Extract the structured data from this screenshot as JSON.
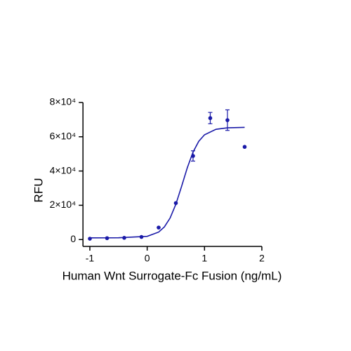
{
  "chart_data": {
    "type": "scatter",
    "xlabel": "Human Wnt Surrogate-Fc Fusion (ng/mL)",
    "ylabel": "RFU",
    "xlim": [
      -1.12,
      2
    ],
    "ylim": [
      -4000,
      80000
    ],
    "xticks": [
      -1,
      0,
      1,
      2
    ],
    "yticks": [
      0,
      {
        "value": 20000,
        "label": "2×10⁴"
      },
      {
        "value": 40000,
        "label": "4×10⁴"
      },
      {
        "value": 60000,
        "label": "6×10⁴"
      },
      {
        "value": 80000,
        "label": "8×10⁴"
      }
    ],
    "color": "#1a1aa8",
    "points": {
      "x": [
        -1,
        -0.7,
        -0.4,
        -0.1,
        0.2,
        0.5,
        0.8,
        1.1,
        1.4,
        1.7
      ],
      "values": [
        500,
        800,
        1000,
        1500,
        7000,
        21300,
        48800,
        70900,
        69700,
        54100
      ],
      "errors": [
        null,
        null,
        null,
        null,
        null,
        null,
        3000,
        3300,
        6000,
        null
      ]
    },
    "fit": {
      "x": [
        -1,
        -0.5,
        0,
        0.2,
        0.3,
        0.4,
        0.5,
        0.6,
        0.7,
        0.8,
        0.9,
        1.0,
        1.2,
        1.4,
        1.7
      ],
      "values": [
        1000,
        1028,
        1879,
        4354,
        7373,
        12580,
        20605,
        31028,
        41952,
        51078,
        57358,
        61145,
        64347,
        65207,
        65463
      ]
    }
  }
}
